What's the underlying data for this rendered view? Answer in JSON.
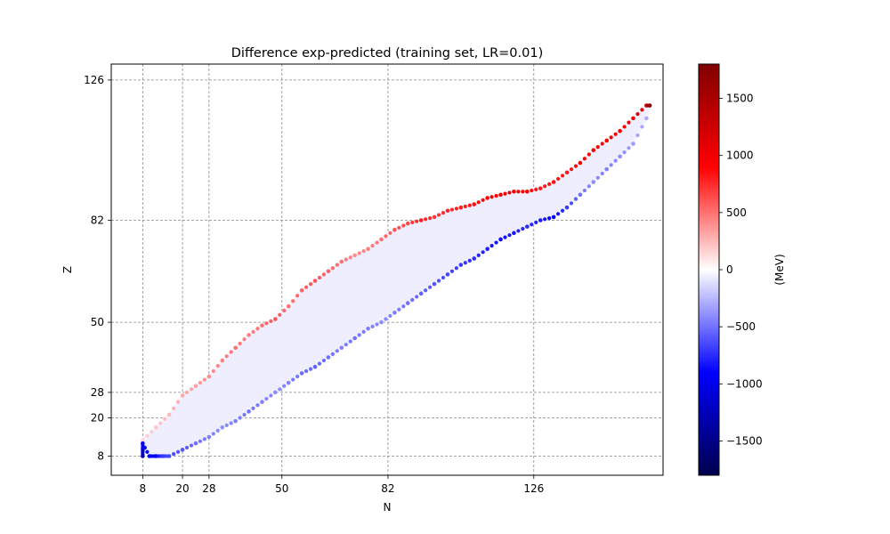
{
  "chart_data": {
    "type": "scatter",
    "title": "Difference exp-predicted (training set, LR=0.01)",
    "xlabel": "N",
    "ylabel": "Z",
    "xlim": [
      -1.5,
      165
    ],
    "ylim": [
      2,
      131
    ],
    "x_ticks": [
      8,
      20,
      28,
      50,
      82,
      126
    ],
    "y_ticks": [
      8,
      20,
      28,
      50,
      82,
      126
    ],
    "grid": "dashed gray lines at magic numbers",
    "colorbar": {
      "label": "(MeV)",
      "range": [
        -1800,
        1800
      ],
      "ticks": [
        -1500,
        -1000,
        -500,
        0,
        500,
        1000,
        1500
      ],
      "colormap": "seismic"
    },
    "series": [
      {
        "role": "neutron-deficient edge",
        "points": [
          [
            8,
            13,
            150
          ],
          [
            12,
            17,
            200
          ],
          [
            16,
            21,
            250
          ],
          [
            20,
            27,
            300
          ],
          [
            24,
            30,
            350
          ],
          [
            28,
            33,
            400
          ],
          [
            32,
            38,
            450
          ],
          [
            36,
            42,
            500
          ],
          [
            40,
            46,
            450
          ],
          [
            44,
            49,
            500
          ],
          [
            48,
            51,
            600
          ],
          [
            52,
            55,
            500
          ],
          [
            56,
            60,
            550
          ],
          [
            60,
            63,
            600
          ],
          [
            64,
            66,
            550
          ],
          [
            68,
            69,
            500
          ],
          [
            72,
            71,
            400
          ],
          [
            76,
            73,
            450
          ],
          [
            80,
            76,
            500
          ],
          [
            84,
            79,
            600
          ],
          [
            88,
            81,
            650
          ],
          [
            92,
            82,
            800
          ],
          [
            96,
            83,
            700
          ],
          [
            100,
            85,
            750
          ],
          [
            104,
            86,
            800
          ],
          [
            108,
            87,
            850
          ],
          [
            112,
            89,
            900
          ],
          [
            116,
            90,
            950
          ],
          [
            120,
            91,
            1000
          ],
          [
            124,
            91,
            900
          ],
          [
            128,
            92,
            800
          ],
          [
            132,
            94,
            850
          ],
          [
            136,
            97,
            800
          ],
          [
            140,
            100,
            900
          ],
          [
            144,
            104,
            950
          ],
          [
            148,
            107,
            1000
          ],
          [
            152,
            110,
            900
          ],
          [
            156,
            114,
            1000
          ],
          [
            160,
            118,
            1300
          ],
          [
            161,
            118,
            1700
          ]
        ]
      },
      {
        "role": "neutron-rich edge",
        "points": [
          [
            8,
            8,
            -1200
          ],
          [
            8,
            10,
            -1100
          ],
          [
            8,
            12,
            -900
          ],
          [
            10,
            8,
            -1000
          ],
          [
            12,
            8,
            -900
          ],
          [
            14,
            8,
            -700
          ],
          [
            16,
            8,
            -650
          ],
          [
            20,
            10,
            -600
          ],
          [
            24,
            12,
            -500
          ],
          [
            28,
            14,
            -450
          ],
          [
            32,
            17,
            -400
          ],
          [
            36,
            19,
            -450
          ],
          [
            40,
            22,
            -500
          ],
          [
            44,
            25,
            -450
          ],
          [
            48,
            28,
            -400
          ],
          [
            52,
            31,
            -450
          ],
          [
            56,
            34,
            -500
          ],
          [
            60,
            36,
            -550
          ],
          [
            64,
            39,
            -500
          ],
          [
            68,
            42,
            -450
          ],
          [
            72,
            45,
            -500
          ],
          [
            76,
            48,
            -450
          ],
          [
            80,
            50,
            -400
          ],
          [
            84,
            53,
            -450
          ],
          [
            88,
            56,
            -500
          ],
          [
            92,
            59,
            -550
          ],
          [
            96,
            62,
            -600
          ],
          [
            100,
            65,
            -650
          ],
          [
            104,
            68,
            -700
          ],
          [
            108,
            70,
            -750
          ],
          [
            112,
            73,
            -800
          ],
          [
            116,
            76,
            -850
          ],
          [
            120,
            78,
            -800
          ],
          [
            124,
            80,
            -750
          ],
          [
            128,
            82,
            -800
          ],
          [
            132,
            83,
            -900
          ],
          [
            136,
            86,
            -700
          ],
          [
            140,
            90,
            -500
          ],
          [
            144,
            94,
            -400
          ],
          [
            148,
            98,
            -450
          ],
          [
            152,
            102,
            -400
          ],
          [
            156,
            106,
            -350
          ],
          [
            160,
            114,
            -300
          ]
        ]
      }
    ]
  }
}
